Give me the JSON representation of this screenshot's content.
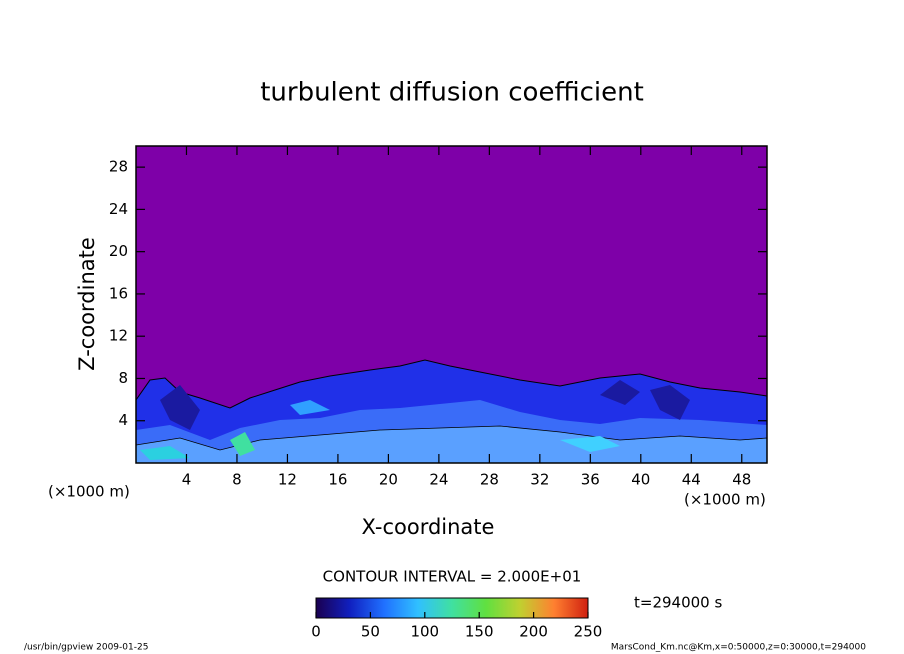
{
  "chart_data": {
    "type": "contour",
    "title": "turbulent diffusion coefficient",
    "xlabel": "X-coordinate",
    "ylabel": "Z-coordinate",
    "xunit": "(×1000 m)",
    "xlim": [
      0,
      50
    ],
    "ylim": [
      0,
      30
    ],
    "xticks": [
      4,
      8,
      12,
      16,
      20,
      24,
      28,
      32,
      36,
      40,
      44,
      48
    ],
    "yticks": [
      4,
      8,
      12,
      16,
      20,
      24,
      28
    ],
    "contour_interval": "CONTOUR INTERVAL = 2.000E+01",
    "time": "t=294000 s",
    "colorbar": {
      "lim": [
        0,
        250
      ],
      "ticks": [
        0,
        50,
        100,
        150,
        200,
        250
      ],
      "colors": [
        "#1a0050",
        "#1020c0",
        "#2070ff",
        "#30c0ff",
        "#40e0a0",
        "#60e040",
        "#c0d030",
        "#ff8030",
        "#d02010"
      ]
    },
    "footer_left": "/usr/bin/gpview  2009-01-25",
    "footer_right": "MarsCond_Km.nc@Km,x=0:50000,z=0:30000,t=294000"
  }
}
